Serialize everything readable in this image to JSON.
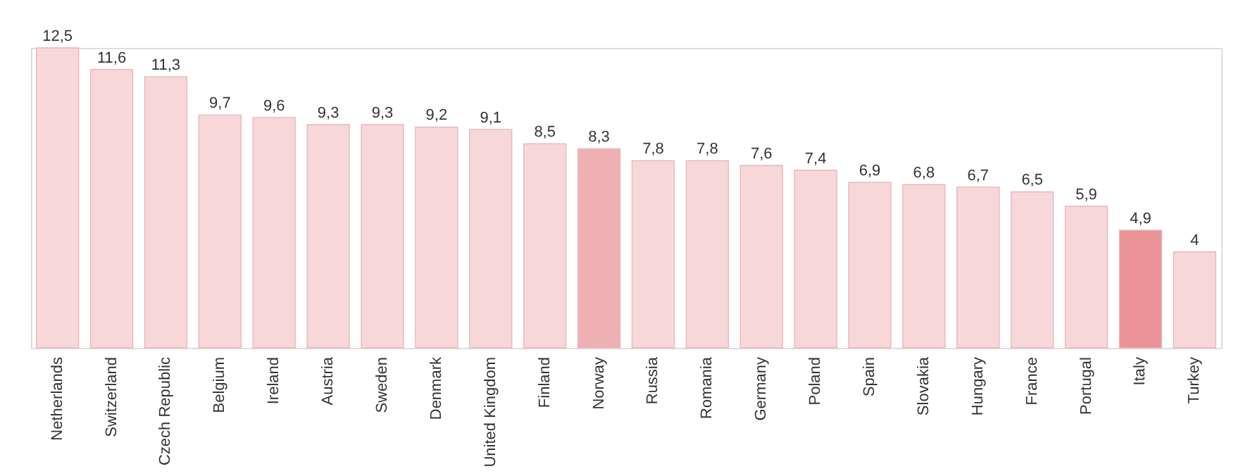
{
  "chart_data": {
    "type": "bar",
    "categories": [
      "Netherlands",
      "Switzerland",
      "Czech Republic",
      "Belgium",
      "Ireland",
      "Austria",
      "Sweden",
      "Denmark",
      "United Kingdom",
      "Finland",
      "Norway",
      "Russia",
      "Romania",
      "Germany",
      "Poland",
      "Spain",
      "Slovakia",
      "Hungary",
      "France",
      "Portugal",
      "Italy",
      "Turkey"
    ],
    "values": [
      12.5,
      11.6,
      11.3,
      9.7,
      9.6,
      9.3,
      9.3,
      9.2,
      9.1,
      8.5,
      8.3,
      7.8,
      7.8,
      7.6,
      7.4,
      6.9,
      6.8,
      6.7,
      6.5,
      5.9,
      4.9,
      4
    ],
    "value_labels": [
      "12,5",
      "11,6",
      "11,3",
      "9,7",
      "9,6",
      "9,3",
      "9,3",
      "9,2",
      "9,1",
      "8,5",
      "8,3",
      "7,8",
      "7,8",
      "7,6",
      "7,4",
      "6,9",
      "6,8",
      "6,7",
      "6,5",
      "5,9",
      "4,9",
      "4"
    ],
    "colors": [
      "#f8d7d9",
      "#f8d7d9",
      "#f8d7d9",
      "#f8d7d9",
      "#f8d7d9",
      "#f8d7d9",
      "#f8d7d9",
      "#f8d7d9",
      "#f8d7d9",
      "#f8d7d9",
      "#efb0b3",
      "#f8d7d9",
      "#f8d7d9",
      "#f8d7d9",
      "#f8d7d9",
      "#f8d7d9",
      "#f8d7d9",
      "#f8d7d9",
      "#f8d7d9",
      "#f8d7d9",
      "#eb9297",
      "#f8d7d9"
    ],
    "grid": false
  }
}
